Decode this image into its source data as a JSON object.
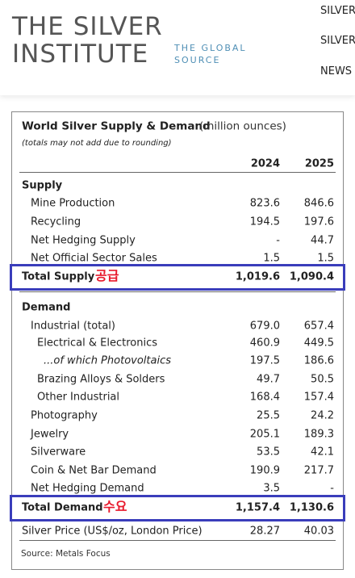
{
  "header": {
    "logo": [
      "THE SILVER",
      "INSTITUTE"
    ],
    "tagline": [
      "THE GLOBAL",
      "SOURCE"
    ],
    "nav": [
      "SILVER",
      "SILVER",
      "NEWS"
    ]
  },
  "table": {
    "title": "World Silver Supply & Demand",
    "unit": "(million ounces)",
    "note": "(totals may not add due to rounding)",
    "columns": [
      "2024",
      "2025"
    ],
    "supply": {
      "heading": "Supply",
      "rows": [
        {
          "label": "Mine Production",
          "values": [
            "823.6",
            "846.6"
          ]
        },
        {
          "label": "Recycling",
          "values": [
            "194.5",
            "197.6"
          ]
        },
        {
          "label": "Net Hedging Supply",
          "values": [
            "-",
            "44.7"
          ]
        },
        {
          "label": "Net Official Sector Sales",
          "values": [
            "1.5",
            "1.5"
          ]
        }
      ],
      "total": {
        "label": "Total Supply",
        "annotation": "공급",
        "values": [
          "1,019.6",
          "1,090.4"
        ]
      }
    },
    "demand": {
      "heading": "Demand",
      "rows": [
        {
          "label": "Industrial (total)",
          "values": [
            "679.0",
            "657.4"
          ]
        },
        {
          "label": "Electrical & Electronics",
          "values": [
            "460.9",
            "449.5"
          ]
        },
        {
          "label": "...of which Photovoltaics",
          "values": [
            "197.5",
            "186.6"
          ]
        },
        {
          "label": "Brazing Alloys & Solders",
          "values": [
            "49.7",
            "50.5"
          ]
        },
        {
          "label": "Other Industrial",
          "values": [
            "168.4",
            "157.4"
          ]
        },
        {
          "label": "Photography",
          "values": [
            "25.5",
            "24.2"
          ]
        },
        {
          "label": "Jewelry",
          "values": [
            "205.1",
            "189.3"
          ]
        },
        {
          "label": "Silverware",
          "values": [
            "53.5",
            "42.1"
          ]
        },
        {
          "label": "Coin & Net Bar Demand",
          "values": [
            "190.9",
            "217.7"
          ]
        },
        {
          "label": "Net Hedging Demand",
          "values": [
            "3.5",
            "-"
          ]
        }
      ],
      "total": {
        "label": "Total Demand",
        "annotation": "수요",
        "values": [
          "1,157.4",
          "1,130.6"
        ]
      }
    },
    "price": {
      "label": "Silver Price (US$/oz, London Price)",
      "values": [
        "28.27",
        "40.03"
      ]
    },
    "source": "Source: Metals Focus"
  }
}
